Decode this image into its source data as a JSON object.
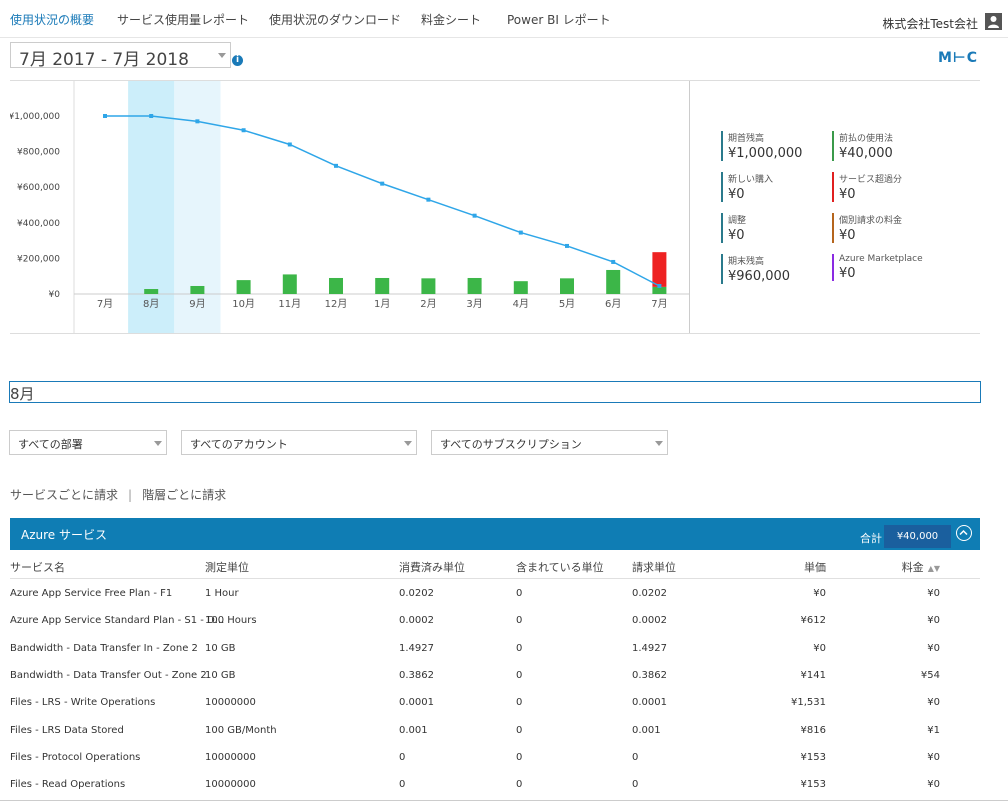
{
  "nav": {
    "tabs": [
      {
        "label": "使用状況の概要",
        "active": true
      },
      {
        "label": "サービス使用量レポート",
        "active": false
      },
      {
        "label": "使用状況のダウンロード",
        "active": false
      },
      {
        "label": "料金シート",
        "active": false
      },
      {
        "label": "Power BI レポート",
        "active": false
      }
    ],
    "company": "株式会社Test会社"
  },
  "date_range": {
    "value": "7月 2017 - 7月 2018"
  },
  "logo_text": "M⊢C",
  "chart_data": {
    "type": "bar+line",
    "categories": [
      "7月",
      "8月",
      "9月",
      "10月",
      "11月",
      "12月",
      "1月",
      "2月",
      "3月",
      "4月",
      "5月",
      "6月",
      "7月"
    ],
    "y_ticks": [
      "¥0",
      "¥200,000",
      "¥400,000",
      "¥600,000",
      "¥800,000",
      "¥1,000,000"
    ],
    "ylim": [
      0,
      1000000
    ],
    "series": [
      {
        "type": "line",
        "color": "#2fa6e8",
        "values": [
          1000000,
          1000000,
          970000,
          920000,
          840000,
          720000,
          620000,
          530000,
          440000,
          345000,
          270000,
          180000,
          45000
        ]
      },
      {
        "type": "bar",
        "color": "#3cb648",
        "values": [
          0,
          28000,
          45000,
          78000,
          110000,
          90000,
          90000,
          88000,
          90000,
          72000,
          88000,
          135000,
          40000
        ]
      },
      {
        "type": "bar",
        "color": "#ee2222",
        "values": [
          0,
          0,
          0,
          0,
          0,
          0,
          0,
          0,
          0,
          0,
          0,
          0,
          195000
        ]
      }
    ],
    "highlight": [
      {
        "index": 1,
        "color": "#cceefa"
      },
      {
        "index": 2,
        "color": "#e6f5fc"
      }
    ],
    "grid": false
  },
  "stats": [
    {
      "label": "期首残高",
      "amount": "¥1,000,000",
      "color": "#2a7a8c"
    },
    {
      "label": "前払の使用法",
      "amount": "¥40,000",
      "color": "#3a9a4a"
    },
    {
      "label": "新しい購入",
      "amount": "¥0",
      "color": "#2a7a8c"
    },
    {
      "label": "サービス超過分",
      "amount": "¥0",
      "color": "#e02020"
    },
    {
      "label": "調整",
      "amount": "¥0",
      "color": "#2a7a8c"
    },
    {
      "label": "個別請求の料金",
      "amount": "¥0",
      "color": "#b5651d"
    },
    {
      "label": "期末残高",
      "amount": "¥960,000",
      "color": "#2a7a8c"
    },
    {
      "label": "Azure Marketplace",
      "amount": "¥0",
      "color": "#8a2be2"
    }
  ],
  "selected_month": "8月",
  "filters": {
    "department": "すべての部署",
    "account": "すべてのアカウント",
    "subscription": "すべてのサブスクリプション"
  },
  "bill_tabs": {
    "by_service": "サービスごとに請求",
    "by_tier": "階層ごとに請求"
  },
  "azure_section": {
    "title": "Azure サービス",
    "total_label": "合計",
    "total_value": "¥40,000"
  },
  "table": {
    "headers": {
      "service": "サービス名",
      "unit": "測定単位",
      "consumed": "消費済み単位",
      "included": "含まれている単位",
      "billed": "請求単位",
      "price": "単価",
      "charge": "料金"
    },
    "rows": [
      {
        "service": "Azure App Service Free Plan - F1",
        "unit": "1 Hour",
        "consumed": "0.0202",
        "included": "0",
        "billed": "0.0202",
        "price": "¥0",
        "charge": "¥0"
      },
      {
        "service": "Azure App Service Standard Plan - S1 - D...",
        "unit": "100 Hours",
        "consumed": "0.0002",
        "included": "0",
        "billed": "0.0002",
        "price": "¥612",
        "charge": "¥0"
      },
      {
        "service": "Bandwidth - Data Transfer In - Zone 2",
        "unit": "10 GB",
        "consumed": "1.4927",
        "included": "0",
        "billed": "1.4927",
        "price": "¥0",
        "charge": "¥0"
      },
      {
        "service": "Bandwidth - Data Transfer Out - Zone 2",
        "unit": "10 GB",
        "consumed": "0.3862",
        "included": "0",
        "billed": "0.3862",
        "price": "¥141",
        "charge": "¥54"
      },
      {
        "service": "Files - LRS - Write Operations",
        "unit": "10000000",
        "consumed": "0.0001",
        "included": "0",
        "billed": "0.0001",
        "price": "¥1,531",
        "charge": "¥0"
      },
      {
        "service": "Files - LRS Data Stored",
        "unit": "100 GB/Month",
        "consumed": "0.001",
        "included": "0",
        "billed": "0.001",
        "price": "¥816",
        "charge": "¥1"
      },
      {
        "service": "Files - Protocol Operations",
        "unit": "10000000",
        "consumed": "0",
        "included": "0",
        "billed": "0",
        "price": "¥153",
        "charge": "¥0"
      },
      {
        "service": "Files - Read Operations",
        "unit": "10000000",
        "consumed": "0",
        "included": "0",
        "billed": "0",
        "price": "¥153",
        "charge": "¥0"
      }
    ]
  }
}
